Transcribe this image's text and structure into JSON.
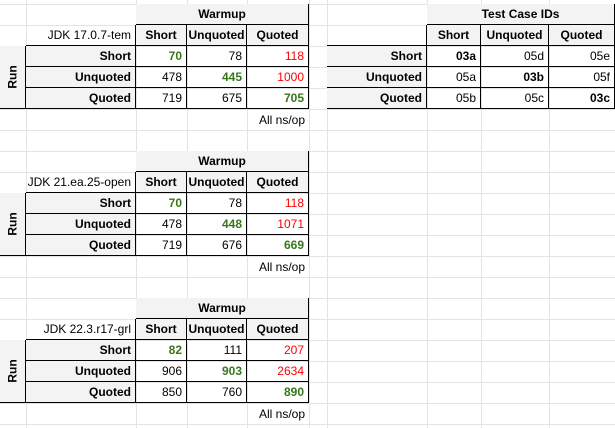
{
  "tables": [
    {
      "id": "jdk17",
      "label": "JDK 17.0.7-tem",
      "header": "Warmup",
      "side_label": "Run",
      "columns": [
        "Short",
        "Unquoted",
        "Quoted"
      ],
      "rows": [
        {
          "name": "Short",
          "values": [
            "70",
            "78",
            "118"
          ]
        },
        {
          "name": "Unquoted",
          "values": [
            "478",
            "445",
            "1000"
          ]
        },
        {
          "name": "Quoted",
          "values": [
            "719",
            "675",
            "705"
          ]
        }
      ],
      "footer": "All ns/op"
    },
    {
      "id": "jdk21",
      "label": "JDK 21.ea.25-open",
      "header": "Warmup",
      "side_label": "Run",
      "columns": [
        "Short",
        "Unquoted",
        "Quoted"
      ],
      "rows": [
        {
          "name": "Short",
          "values": [
            "70",
            "78",
            "118"
          ]
        },
        {
          "name": "Unquoted",
          "values": [
            "478",
            "448",
            "1071"
          ]
        },
        {
          "name": "Quoted",
          "values": [
            "719",
            "676",
            "669"
          ]
        }
      ],
      "footer": "All ns/op"
    },
    {
      "id": "jdk22",
      "label": "JDK 22.3.r17-grl",
      "header": "Warmup",
      "side_label": "Run",
      "columns": [
        "Short",
        "Unquoted",
        "Quoted"
      ],
      "rows": [
        {
          "name": "Short",
          "values": [
            "82",
            "111",
            "207"
          ]
        },
        {
          "name": "Unquoted",
          "values": [
            "906",
            "903",
            "2634"
          ]
        },
        {
          "name": "Quoted",
          "values": [
            "850",
            "760",
            "890"
          ]
        }
      ],
      "footer": "All ns/op"
    }
  ],
  "ids_table": {
    "header": "Test Case IDs",
    "columns": [
      "Short",
      "Unquoted",
      "Quoted"
    ],
    "rows": [
      {
        "name": "Short",
        "values": [
          "03a",
          "05d",
          "05e"
        ]
      },
      {
        "name": "Unquoted",
        "values": [
          "05a",
          "03b",
          "05f"
        ]
      },
      {
        "name": "Quoted",
        "values": [
          "05b",
          "05c",
          "03c"
        ]
      }
    ]
  },
  "colors": {
    "diagonal_green": "#38761d",
    "high_red": "#ff0000",
    "header_shade": "#f3f3f3",
    "gridline": "#e2e3e3"
  }
}
